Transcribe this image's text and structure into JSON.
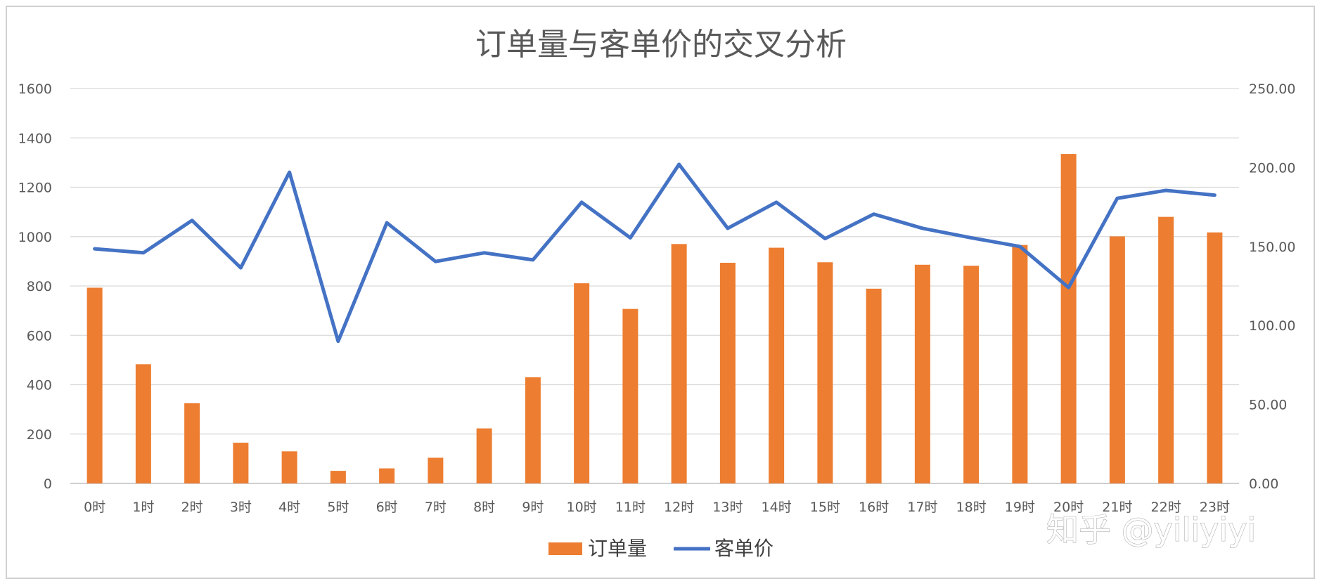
{
  "chart_data": {
    "type": "bar",
    "title": "订单量与客单价的交叉分析",
    "categories": [
      "0时",
      "1时",
      "2时",
      "3时",
      "4时",
      "5时",
      "6时",
      "7时",
      "8时",
      "9时",
      "10时",
      "11时",
      "12时",
      "13时",
      "14时",
      "15时",
      "16时",
      "17时",
      "18时",
      "19时",
      "20时",
      "21时",
      "22时",
      "23时"
    ],
    "series": [
      {
        "name": "订单量",
        "type": "bar",
        "axis": "left",
        "color": "#ED7D31",
        "values": [
          793,
          483,
          325,
          165,
          130,
          51,
          61,
          104,
          223,
          430,
          811,
          707,
          970,
          894,
          955,
          896,
          789,
          886,
          882,
          966,
          1335,
          1001,
          1080,
          1017
        ]
      },
      {
        "name": "客单价",
        "type": "line",
        "axis": "right",
        "color": "#4472C4",
        "values": [
          148.5,
          146.0,
          166.5,
          136.5,
          197.0,
          90.0,
          165.0,
          140.5,
          146.0,
          141.5,
          178.0,
          155.5,
          202.0,
          161.5,
          178.0,
          155.0,
          170.5,
          161.5,
          155.5,
          150.0,
          124.0,
          180.5,
          185.5,
          182.5
        ]
      }
    ],
    "y_left": {
      "min": 0,
      "max": 1600,
      "ticks": [
        "0",
        "200",
        "400",
        "600",
        "800",
        "1000",
        "1200",
        "1400",
        "1600"
      ]
    },
    "y_right": {
      "min": 0,
      "max": 250,
      "ticks": [
        "0.00",
        "50.00",
        "100.00",
        "150.00",
        "200.00",
        "250.00"
      ]
    },
    "grid": true,
    "legend_position": "bottom"
  },
  "watermark": "知乎 @yiliyiyi"
}
